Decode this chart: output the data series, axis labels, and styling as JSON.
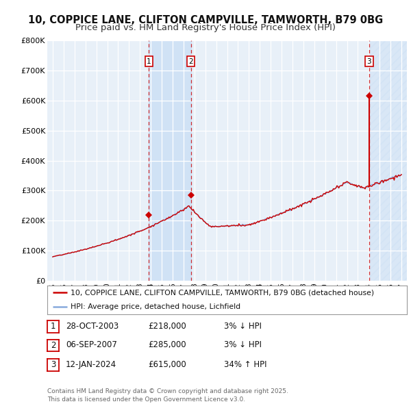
{
  "title": "10, COPPICE LANE, CLIFTON CAMPVILLE, TAMWORTH, B79 0BG",
  "subtitle": "Price paid vs. HM Land Registry's House Price Index (HPI)",
  "title_fontsize": 10.5,
  "subtitle_fontsize": 9.5,
  "bg_color": "#ffffff",
  "plot_bg_color": "#e8f0f8",
  "grid_color": "#ffffff",
  "sale_color": "#cc0000",
  "hpi_color": "#88aadd",
  "ylim": [
    0,
    800000
  ],
  "yticks": [
    0,
    100000,
    200000,
    300000,
    400000,
    500000,
    600000,
    700000,
    800000
  ],
  "ytick_labels": [
    "£0",
    "£100K",
    "£200K",
    "£300K",
    "£400K",
    "£500K",
    "£600K",
    "£700K",
    "£800K"
  ],
  "xlim_start": 1994.5,
  "xlim_end": 2027.5,
  "legend_sale": "10, COPPICE LANE, CLIFTON CAMPVILLE, TAMWORTH, B79 0BG (detached house)",
  "legend_hpi": "HPI: Average price, detached house, Lichfield",
  "sales": [
    {
      "year": 2003.83,
      "price": 218000,
      "label": "1"
    },
    {
      "year": 2007.67,
      "price": 285000,
      "label": "2"
    },
    {
      "year": 2024.04,
      "price": 615000,
      "label": "3"
    }
  ],
  "shade1_x1": 2003.83,
  "shade1_x2": 2007.67,
  "shade3_x1": 2024.04,
  "shade3_x2": 2027.5,
  "table_rows": [
    {
      "num": "1",
      "date": "28-OCT-2003",
      "price": "£218,000",
      "change": "3% ↓ HPI"
    },
    {
      "num": "2",
      "date": "06-SEP-2007",
      "price": "£285,000",
      "change": "3% ↓ HPI"
    },
    {
      "num": "3",
      "date": "12-JAN-2024",
      "price": "£615,000",
      "change": "34% ↑ HPI"
    }
  ],
  "footnote": "Contains HM Land Registry data © Crown copyright and database right 2025.\nThis data is licensed under the Open Government Licence v3.0."
}
